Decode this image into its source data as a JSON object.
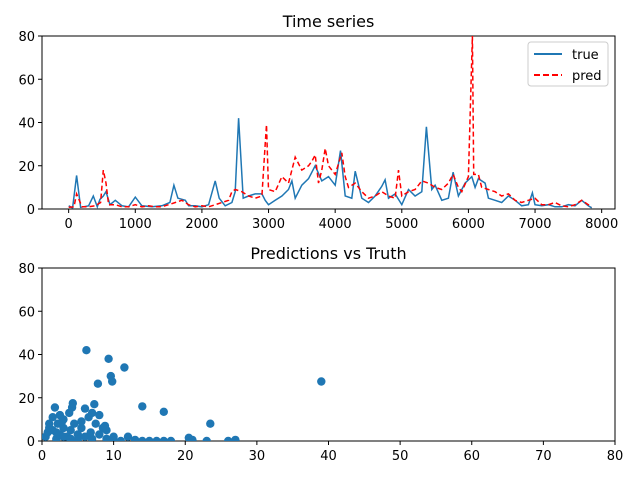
{
  "chart_data": [
    {
      "type": "line",
      "title": "Time series",
      "xlim": [
        -400,
        8200
      ],
      "ylim": [
        0,
        80
      ],
      "xticks": [
        0,
        1000,
        2000,
        3000,
        4000,
        5000,
        6000,
        7000,
        8000
      ],
      "yticks": [
        0,
        20,
        40,
        60,
        80
      ],
      "legend": "top-right",
      "series": [
        {
          "name": "true",
          "color": "#1f77b4",
          "style": "solid",
          "points": [
            [
              0,
              1.5
            ],
            [
              60,
              0.5
            ],
            [
              120,
              15.5
            ],
            [
              180,
              0.8
            ],
            [
              300,
              1.5
            ],
            [
              370,
              6
            ],
            [
              430,
              1
            ],
            [
              470,
              4.5
            ],
            [
              520,
              6
            ],
            [
              560,
              8
            ],
            [
              620,
              2
            ],
            [
              700,
              4
            ],
            [
              800,
              1.5
            ],
            [
              900,
              1
            ],
            [
              1000,
              5.5
            ],
            [
              1100,
              1.5
            ],
            [
              1250,
              1
            ],
            [
              1400,
              1.5
            ],
            [
              1520,
              3
            ],
            [
              1580,
              11
            ],
            [
              1640,
              5
            ],
            [
              1750,
              4
            ],
            [
              1800,
              1.5
            ],
            [
              1900,
              1.5
            ],
            [
              2000,
              1
            ],
            [
              2100,
              2
            ],
            [
              2200,
              13
            ],
            [
              2260,
              5
            ],
            [
              2350,
              1.5
            ],
            [
              2450,
              3
            ],
            [
              2500,
              8
            ],
            [
              2550,
              42
            ],
            [
              2620,
              5
            ],
            [
              2700,
              6
            ],
            [
              2800,
              7
            ],
            [
              2900,
              7
            ],
            [
              2950,
              4
            ],
            [
              3000,
              2
            ],
            [
              3100,
              4
            ],
            [
              3200,
              6
            ],
            [
              3300,
              9
            ],
            [
              3350,
              13
            ],
            [
              3400,
              5
            ],
            [
              3500,
              11
            ],
            [
              3600,
              14
            ],
            [
              3700,
              20
            ],
            [
              3800,
              13
            ],
            [
              3900,
              15
            ],
            [
              4000,
              11
            ],
            [
              4080,
              27
            ],
            [
              4150,
              6
            ],
            [
              4250,
              5
            ],
            [
              4300,
              17.5
            ],
            [
              4400,
              5
            ],
            [
              4500,
              3
            ],
            [
              4600,
              6
            ],
            [
              4700,
              10.5
            ],
            [
              4750,
              13.5
            ],
            [
              4800,
              5
            ],
            [
              4900,
              7
            ],
            [
              5000,
              2
            ],
            [
              5100,
              9
            ],
            [
              5200,
              6
            ],
            [
              5300,
              8
            ],
            [
              5370,
              38
            ],
            [
              5450,
              9
            ],
            [
              5500,
              11
            ],
            [
              5600,
              4
            ],
            [
              5700,
              5
            ],
            [
              5770,
              17
            ],
            [
              5850,
              6
            ],
            [
              5950,
              12
            ],
            [
              6050,
              15
            ],
            [
              6100,
              10
            ],
            [
              6150,
              14
            ],
            [
              6250,
              12
            ],
            [
              6300,
              5
            ],
            [
              6400,
              4
            ],
            [
              6500,
              3
            ],
            [
              6600,
              6
            ],
            [
              6700,
              4
            ],
            [
              6800,
              1.5
            ],
            [
              6900,
              2
            ],
            [
              6960,
              7.5
            ],
            [
              7000,
              2
            ],
            [
              7100,
              1.5
            ],
            [
              7200,
              2
            ],
            [
              7300,
              1
            ],
            [
              7400,
              1
            ],
            [
              7500,
              2
            ],
            [
              7600,
              1.5
            ],
            [
              7700,
              4
            ],
            [
              7800,
              1.5
            ],
            [
              7850,
              0.5
            ]
          ]
        },
        {
          "name": "pred",
          "color": "#ff0000",
          "style": "dashed",
          "points": [
            [
              0,
              0.8
            ],
            [
              80,
              1
            ],
            [
              120,
              7
            ],
            [
              200,
              1
            ],
            [
              300,
              1
            ],
            [
              400,
              1.5
            ],
            [
              480,
              3
            ],
            [
              520,
              18
            ],
            [
              560,
              12
            ],
            [
              600,
              2
            ],
            [
              700,
              2
            ],
            [
              800,
              1
            ],
            [
              900,
              1
            ],
            [
              1000,
              2
            ],
            [
              1100,
              1
            ],
            [
              1200,
              1.5
            ],
            [
              1300,
              1
            ],
            [
              1400,
              1
            ],
            [
              1500,
              2
            ],
            [
              1600,
              3
            ],
            [
              1700,
              4
            ],
            [
              1800,
              2
            ],
            [
              1900,
              1
            ],
            [
              2000,
              1.5
            ],
            [
              2100,
              1
            ],
            [
              2200,
              2
            ],
            [
              2300,
              3
            ],
            [
              2400,
              4
            ],
            [
              2450,
              8
            ],
            [
              2500,
              9
            ],
            [
              2600,
              8
            ],
            [
              2700,
              6
            ],
            [
              2800,
              5
            ],
            [
              2900,
              6
            ],
            [
              2950,
              30
            ],
            [
              2970,
              39
            ],
            [
              3000,
              9
            ],
            [
              3100,
              8
            ],
            [
              3200,
              15
            ],
            [
              3300,
              12
            ],
            [
              3400,
              24
            ],
            [
              3500,
              18
            ],
            [
              3600,
              20
            ],
            [
              3650,
              22
            ],
            [
              3700,
              25
            ],
            [
              3750,
              12
            ],
            [
              3800,
              18
            ],
            [
              3850,
              28
            ],
            [
              3900,
              20
            ],
            [
              4000,
              16
            ],
            [
              4100,
              26
            ],
            [
              4150,
              15
            ],
            [
              4200,
              10
            ],
            [
              4300,
              12
            ],
            [
              4400,
              8
            ],
            [
              4500,
              5
            ],
            [
              4600,
              6
            ],
            [
              4700,
              8
            ],
            [
              4800,
              6
            ],
            [
              4900,
              5
            ],
            [
              4950,
              18
            ],
            [
              5000,
              6
            ],
            [
              5100,
              8
            ],
            [
              5200,
              9
            ],
            [
              5300,
              13
            ],
            [
              5400,
              12
            ],
            [
              5500,
              10
            ],
            [
              5600,
              9
            ],
            [
              5700,
              12
            ],
            [
              5770,
              16
            ],
            [
              5850,
              10
            ],
            [
              5900,
              8
            ],
            [
              6000,
              15
            ],
            [
              6060,
              80
            ],
            [
              6080,
              16
            ],
            [
              6150,
              16
            ],
            [
              6200,
              10
            ],
            [
              6300,
              9
            ],
            [
              6400,
              8
            ],
            [
              6500,
              6
            ],
            [
              6600,
              7
            ],
            [
              6700,
              4
            ],
            [
              6800,
              3
            ],
            [
              6900,
              4
            ],
            [
              7000,
              5
            ],
            [
              7100,
              2
            ],
            [
              7200,
              2
            ],
            [
              7300,
              3
            ],
            [
              7400,
              1.5
            ],
            [
              7500,
              1
            ],
            [
              7600,
              2
            ],
            [
              7700,
              4
            ],
            [
              7800,
              2
            ],
            [
              7850,
              1
            ]
          ]
        }
      ]
    },
    {
      "type": "scatter",
      "title": "Predictions vs Truth",
      "xlim": [
        0,
        80
      ],
      "ylim": [
        0,
        80
      ],
      "xticks": [
        0,
        10,
        20,
        30,
        40,
        50,
        60,
        70,
        80
      ],
      "yticks": [
        0,
        20,
        40,
        60,
        80
      ],
      "color": "#1f77b4",
      "points": [
        [
          0.5,
          2
        ],
        [
          0.8,
          4
        ],
        [
          1,
          6
        ],
        [
          1,
          8
        ],
        [
          1.5,
          11
        ],
        [
          1.8,
          15.5
        ],
        [
          2,
          1
        ],
        [
          2.2,
          8
        ],
        [
          2.5,
          12
        ],
        [
          2.5,
          3
        ],
        [
          3,
          6
        ],
        [
          3,
          10
        ],
        [
          3.5,
          2
        ],
        [
          4,
          5
        ],
        [
          4.2,
          15.5
        ],
        [
          4.3,
          17.5
        ],
        [
          4.5,
          8
        ],
        [
          5,
          3
        ],
        [
          5.5,
          6
        ],
        [
          6,
          15
        ],
        [
          6.2,
          42
        ],
        [
          6.5,
          11
        ],
        [
          7,
          13
        ],
        [
          7.3,
          17
        ],
        [
          7.5,
          8
        ],
        [
          7.8,
          26.5
        ],
        [
          8,
          12
        ],
        [
          8.5,
          6
        ],
        [
          9,
          5
        ],
        [
          9.3,
          38
        ],
        [
          9.6,
          30
        ],
        [
          9.8,
          27.5
        ],
        [
          10,
          2
        ],
        [
          10,
          0
        ],
        [
          11,
          0
        ],
        [
          12,
          2
        ],
        [
          11.5,
          34
        ],
        [
          13,
          0.5
        ],
        [
          14,
          16
        ],
        [
          14,
          0
        ],
        [
          15,
          0
        ],
        [
          16,
          0
        ],
        [
          17,
          13.5
        ],
        [
          17,
          0
        ],
        [
          18,
          0
        ],
        [
          20.5,
          1.5
        ],
        [
          21,
          0.5
        ],
        [
          23,
          0
        ],
        [
          23.5,
          8
        ],
        [
          26,
          0
        ],
        [
          27,
          0.5
        ],
        [
          39,
          27.5
        ],
        [
          2,
          4
        ],
        [
          3,
          2
        ],
        [
          4,
          1
        ],
        [
          5,
          0.5
        ],
        [
          6,
          2
        ],
        [
          7,
          1
        ],
        [
          8,
          3
        ],
        [
          9,
          1
        ],
        [
          1.5,
          5
        ],
        [
          2.8,
          9
        ],
        [
          3.8,
          13
        ],
        [
          5.5,
          9
        ],
        [
          6.8,
          4
        ],
        [
          8.8,
          7
        ]
      ]
    }
  ]
}
